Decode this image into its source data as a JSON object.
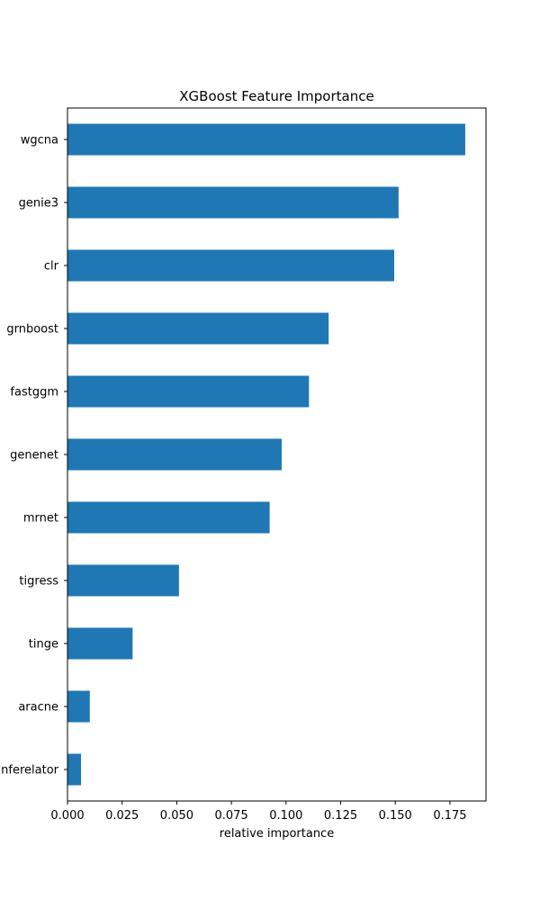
{
  "chart_data": {
    "type": "bar",
    "orientation": "horizontal",
    "title": "XGBoost Feature Importance",
    "xlabel": "relative importance",
    "ylabel": "",
    "categories": [
      "wgcna",
      "genie3",
      "clr",
      "grnboost",
      "fastggm",
      "genenet",
      "mrnet",
      "tigress",
      "tinge",
      "aracne",
      "inferelator"
    ],
    "values": [
      0.182,
      0.1515,
      0.1495,
      0.1195,
      0.1105,
      0.098,
      0.0925,
      0.051,
      0.0298,
      0.0102,
      0.0062
    ],
    "xlim": [
      0,
      0.1915
    ],
    "xticks": [
      "0.000",
      "0.025",
      "0.050",
      "0.075",
      "0.100",
      "0.125",
      "0.150",
      "0.175"
    ],
    "grid": false,
    "bar_color": "#1f77b4"
  }
}
